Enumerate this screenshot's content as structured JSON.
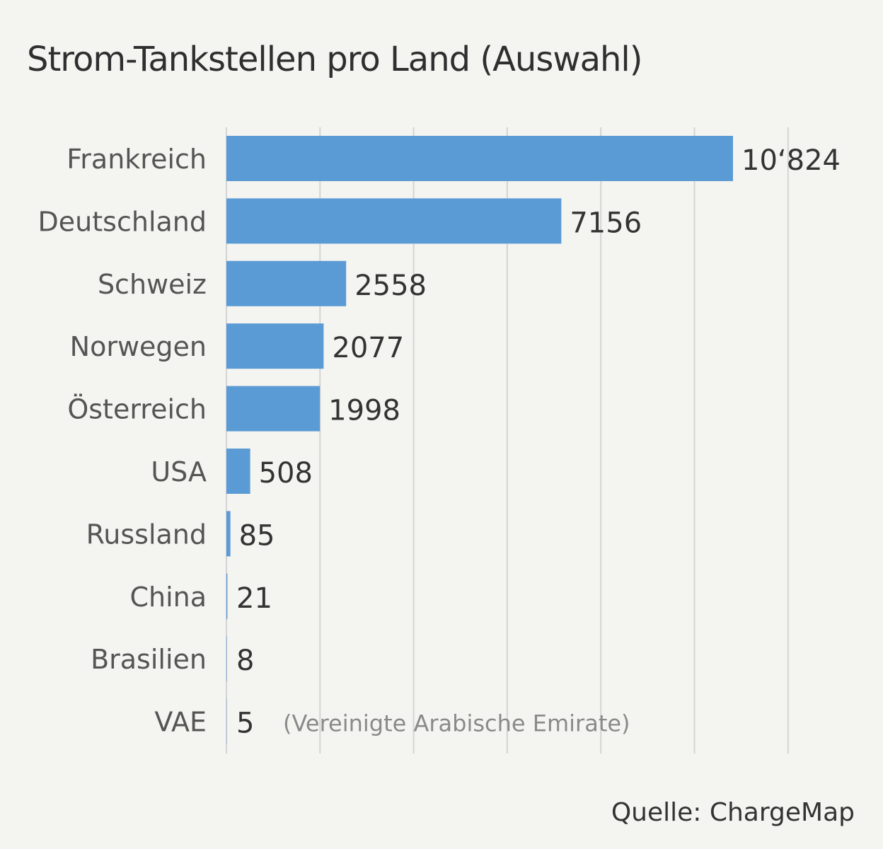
{
  "chart_data": {
    "type": "bar",
    "orientation": "horizontal",
    "title": "Strom-Tankstellen pro Land (Auswahl)",
    "categories": [
      "Frankreich",
      "Deutschland",
      "Schweiz",
      "Norwegen",
      "Österreich",
      "USA",
      "Russland",
      "China",
      "Brasilien",
      "VAE"
    ],
    "values": [
      10824,
      7156,
      2558,
      2077,
      1998,
      508,
      85,
      21,
      8,
      5
    ],
    "value_labels": [
      "10‘824",
      "7156",
      "2558",
      "2077",
      "1998",
      "508",
      "85",
      "21",
      "8",
      "5"
    ],
    "annotations": [
      {
        "category": "VAE",
        "text": "(Vereinigte Arabische Emirate)"
      }
    ],
    "xlim": [
      0,
      12000
    ],
    "grid": true,
    "bar_color": "#5b9bd5"
  },
  "source": "Quelle: ChargeMap"
}
